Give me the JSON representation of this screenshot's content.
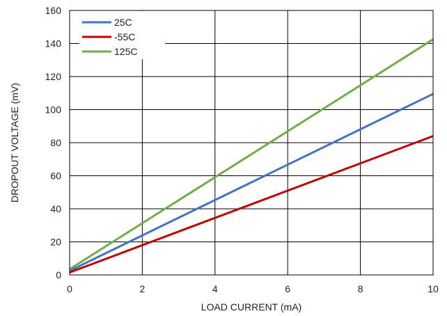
{
  "chart_data": {
    "type": "line",
    "xlabel": "LOAD CURRENT (mA)",
    "ylabel": "DROPOUT VOLTAGE (mV)",
    "xlim": [
      0,
      10
    ],
    "ylim": [
      0,
      160
    ],
    "xticks": [
      0,
      2,
      4,
      6,
      8,
      10
    ],
    "yticks": [
      0,
      20,
      40,
      60,
      80,
      100,
      120,
      140,
      160
    ],
    "grid": true,
    "legend_position": "top-left",
    "series": [
      {
        "name": "25C",
        "color": "#4472c4",
        "x": [
          0,
          10
        ],
        "y": [
          2.5,
          109.5
        ]
      },
      {
        "name": "-55C",
        "color": "#c00000",
        "x": [
          0,
          10
        ],
        "y": [
          1.5,
          84
        ]
      },
      {
        "name": "125C",
        "color": "#70ad47",
        "x": [
          0,
          10
        ],
        "y": [
          3.5,
          142.5
        ]
      }
    ]
  }
}
